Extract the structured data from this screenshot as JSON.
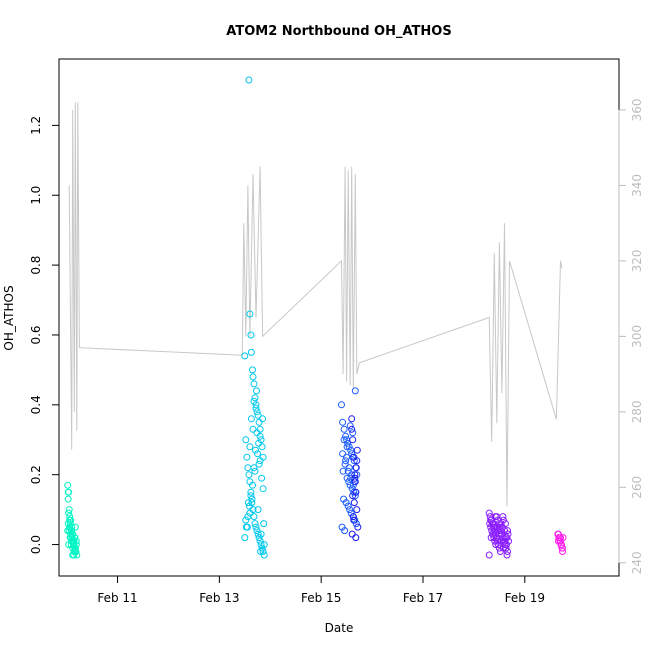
{
  "chart_data": {
    "type": "scatter",
    "title": "ATOM2 Northbound OH_ATHOS",
    "xlabel": "Date",
    "ylabel": "OH_ATHOS",
    "x_range_days": [
      9.85,
      20.85
    ],
    "x_ticks": [
      {
        "day": 11,
        "label": "Feb 11"
      },
      {
        "day": 13,
        "label": "Feb 13"
      },
      {
        "day": 15,
        "label": "Feb 15"
      },
      {
        "day": 17,
        "label": "Feb 17"
      },
      {
        "day": 19,
        "label": "Feb 19"
      }
    ],
    "ylim": [
      -0.09,
      1.39
    ],
    "y_ticks": [
      0.0,
      0.2,
      0.4,
      0.6,
      0.8,
      1.0,
      1.2
    ],
    "y2lim": [
      236.5,
      373.5
    ],
    "y2_ticks": [
      240,
      260,
      280,
      300,
      320,
      340,
      360
    ],
    "grid": false,
    "colors": {
      "secondary_line": "#c8c8c8",
      "secondary_axis": "#bdbdbd",
      "palette": [
        "#00f5c4",
        "#00c8ee",
        "#1a5cff",
        "#1e1ef0",
        "#8a1eff",
        "#ff20ee"
      ]
    },
    "secondary_series": {
      "description": "grey line (right axis)",
      "x": [
        10.05,
        10.1,
        10.12,
        10.15,
        10.17,
        10.2,
        10.22,
        10.25,
        13.45,
        13.48,
        13.52,
        13.56,
        13.6,
        13.66,
        13.72,
        13.8,
        13.85,
        15.4,
        15.43,
        15.47,
        15.5,
        15.53,
        15.57,
        15.6,
        15.63,
        15.67,
        15.7,
        15.75,
        18.3,
        18.35,
        18.4,
        18.45,
        18.5,
        18.55,
        18.6,
        18.65,
        18.7,
        19.62,
        19.7,
        19.73
      ],
      "y": [
        340,
        270,
        360,
        280,
        362,
        275,
        362,
        297,
        295,
        330,
        300,
        340,
        300,
        343,
        305,
        345,
        300,
        320,
        290,
        345,
        288,
        344,
        287,
        345,
        286,
        343,
        290,
        293,
        305,
        272,
        322,
        277,
        325,
        285,
        330,
        255,
        320,
        278,
        320,
        318
      ]
    },
    "series": [
      {
        "color": "#00f5c4",
        "x": [
          10.02,
          10.04,
          10.06,
          10.08,
          10.1,
          10.12,
          10.14,
          10.16,
          10.18,
          10.2,
          10.03,
          10.05,
          10.07,
          10.09,
          10.11,
          10.13,
          10.15,
          10.17,
          10.19,
          10.04,
          10.06,
          10.08,
          10.1,
          10.12,
          10.14,
          10.16,
          10.18,
          10.03,
          10.05,
          10.07,
          10.09,
          10.11,
          10.13,
          10.15,
          10.17,
          10.19,
          10.06,
          10.08,
          10.1,
          10.12,
          10.14,
          10.16,
          10.04,
          10.02,
          10.03
        ],
        "y": [
          0.17,
          0.15,
          0.08,
          0.07,
          0.05,
          0.03,
          0.01,
          -0.01,
          -0.02,
          -0.03,
          0.13,
          0.1,
          0.06,
          0.04,
          0.02,
          0.0,
          -0.02,
          -0.01,
          0.0,
          0.09,
          0.05,
          0.03,
          0.01,
          -0.01,
          -0.03,
          0.02,
          -0.02,
          0.06,
          0.04,
          0.02,
          0.0,
          0.03,
          0.01,
          -0.02,
          0.05,
          0.01,
          0.07,
          0.02,
          0.04,
          -0.03,
          0.0,
          0.02,
          0.0,
          0.04,
          0.15
        ]
      },
      {
        "color": "#00c8ee",
        "x": [
          13.58,
          13.6,
          13.62,
          13.63,
          13.65,
          13.66,
          13.68,
          13.7,
          13.72,
          13.74,
          13.76,
          13.78,
          13.8,
          13.82,
          13.84,
          13.86,
          13.5,
          13.52,
          13.54,
          13.56,
          13.58,
          13.6,
          13.62,
          13.64,
          13.66,
          13.68,
          13.7,
          13.72,
          13.74,
          13.76,
          13.78,
          13.8,
          13.82,
          13.84,
          13.86,
          13.88,
          13.5,
          13.53,
          13.56,
          13.59,
          13.62,
          13.65,
          13.68,
          13.71,
          13.74,
          13.77,
          13.8,
          13.83,
          13.86,
          13.55,
          13.6,
          13.64,
          13.7,
          13.75,
          13.8,
          13.85,
          13.88,
          13.52,
          13.57,
          13.63,
          13.68,
          13.73,
          13.78,
          13.82,
          13.87,
          13.6,
          13.66,
          13.72,
          13.76,
          13.81
        ],
        "y": [
          1.33,
          0.66,
          0.6,
          0.55,
          0.5,
          0.48,
          0.46,
          0.42,
          0.4,
          0.38,
          0.37,
          0.35,
          0.33,
          0.3,
          0.28,
          0.25,
          0.54,
          0.3,
          0.25,
          0.22,
          0.2,
          0.18,
          0.15,
          0.12,
          0.1,
          0.08,
          0.06,
          0.05,
          0.04,
          0.03,
          0.02,
          0.01,
          0.0,
          -0.01,
          -0.02,
          -0.03,
          0.02,
          0.05,
          0.08,
          0.11,
          0.14,
          0.17,
          0.22,
          0.27,
          0.32,
          0.29,
          0.24,
          0.19,
          0.16,
          0.05,
          0.09,
          0.13,
          0.21,
          0.26,
          0.31,
          0.36,
          0.0,
          0.07,
          0.12,
          0.36,
          0.41,
          0.44,
          0.23,
          0.03,
          0.06,
          0.28,
          0.33,
          0.39,
          0.1,
          -0.02
        ]
      },
      {
        "color": "#1a5cff",
        "x": [
          15.4,
          15.42,
          15.45,
          15.48,
          15.5,
          15.52,
          15.55,
          15.58,
          15.6,
          15.62,
          15.65,
          15.68,
          15.7,
          15.43,
          15.47,
          15.51,
          15.54,
          15.57,
          15.61,
          15.64,
          15.67,
          15.44,
          15.49,
          15.53,
          15.56,
          15.59,
          15.63,
          15.66,
          15.69,
          15.41,
          15.46,
          15.5,
          15.55,
          15.6,
          15.65,
          15.42,
          15.48,
          15.53,
          15.58,
          15.63,
          15.68,
          15.45,
          15.51,
          15.57,
          15.62,
          15.67
        ],
        "y": [
          0.4,
          0.35,
          0.33,
          0.31,
          0.3,
          0.29,
          0.28,
          0.27,
          0.26,
          0.25,
          0.24,
          0.22,
          0.2,
          0.21,
          0.23,
          0.19,
          0.18,
          0.17,
          0.16,
          0.15,
          0.14,
          0.13,
          0.12,
          0.11,
          0.1,
          0.09,
          0.08,
          0.07,
          0.06,
          0.05,
          0.04,
          0.25,
          0.22,
          0.2,
          0.18,
          0.26,
          0.24,
          0.21,
          0.19,
          0.17,
          0.15,
          0.3,
          0.28,
          0.34,
          0.32,
          0.44
        ]
      },
      {
        "color": "#1e1ef0",
        "x": [
          15.6,
          15.62,
          15.64,
          15.66,
          15.68,
          15.7,
          15.72,
          15.61,
          15.63,
          15.65,
          15.67,
          15.69,
          15.71,
          15.6,
          15.64,
          15.68,
          15.62,
          15.66,
          15.7
        ],
        "y": [
          0.36,
          0.3,
          0.25,
          0.2,
          0.15,
          0.1,
          0.05,
          0.03,
          0.08,
          0.12,
          0.18,
          0.22,
          0.27,
          0.33,
          0.07,
          0.02,
          0.14,
          0.19,
          0.24
        ]
      },
      {
        "color": "#8a1eff",
        "x": [
          18.3,
          18.32,
          18.34,
          18.36,
          18.38,
          18.4,
          18.42,
          18.44,
          18.46,
          18.48,
          18.5,
          18.52,
          18.54,
          18.56,
          18.58,
          18.6,
          18.62,
          18.64,
          18.66,
          18.68,
          18.31,
          18.33,
          18.35,
          18.37,
          18.39,
          18.41,
          18.43,
          18.45,
          18.47,
          18.49,
          18.51,
          18.53,
          18.55,
          18.57,
          18.59,
          18.61,
          18.63,
          18.65,
          18.67,
          18.3,
          18.34,
          18.38,
          18.42,
          18.46,
          18.5,
          18.54,
          18.58,
          18.62,
          18.66,
          18.33,
          18.37,
          18.41,
          18.45,
          18.49,
          18.53,
          18.57,
          18.61,
          18.65
        ],
        "y": [
          0.09,
          0.08,
          0.07,
          0.06,
          0.05,
          0.04,
          0.03,
          0.02,
          0.01,
          0.0,
          -0.01,
          -0.02,
          0.03,
          0.05,
          0.07,
          0.04,
          0.02,
          0.0,
          -0.02,
          0.01,
          0.06,
          0.05,
          0.04,
          0.03,
          0.02,
          0.01,
          0.0,
          0.08,
          0.07,
          0.06,
          0.05,
          0.04,
          0.03,
          0.02,
          0.01,
          0.0,
          -0.01,
          0.02,
          0.03,
          -0.03,
          0.02,
          0.06,
          0.08,
          0.05,
          0.03,
          0.01,
          -0.01,
          0.06,
          0.04,
          0.07,
          0.03,
          0.05,
          0.02,
          0.04,
          0.06,
          0.08,
          0.01,
          -0.03
        ]
      },
      {
        "color": "#ff20ee",
        "x": [
          19.65,
          19.67,
          19.69,
          19.71,
          19.73,
          19.75,
          19.66,
          19.68,
          19.7,
          19.72,
          19.74,
          19.66,
          19.7,
          19.74
        ],
        "y": [
          0.03,
          0.02,
          0.01,
          0.0,
          -0.01,
          0.02,
          0.03,
          0.02,
          0.01,
          0.0,
          -0.02,
          0.01,
          0.02,
          -0.01
        ]
      }
    ]
  }
}
